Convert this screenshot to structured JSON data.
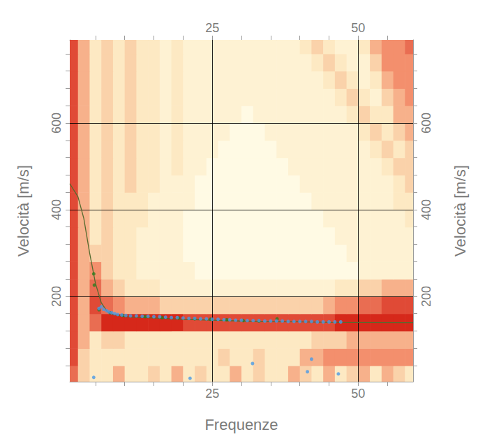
{
  "chart_data": {
    "type": "heatmap",
    "x_label": "Frequenze",
    "y_label": "Velocità [m/s]",
    "xlim": [
      0.6,
      59.4
    ],
    "ylim": [
      3,
      792
    ],
    "xticks": [
      25,
      50
    ],
    "yticks": [
      200,
      400,
      600
    ],
    "grid": true,
    "heatmap": {
      "x": [
        1,
        3,
        5,
        7,
        9,
        11,
        13,
        15,
        17,
        19,
        21,
        23,
        25,
        27,
        29,
        31,
        33,
        35,
        37,
        39,
        41,
        43,
        45,
        47,
        49,
        51,
        53,
        55,
        57,
        59
      ],
      "y": [
        20,
        60,
        100,
        140,
        180,
        220,
        260,
        300,
        340,
        380,
        420,
        460,
        500,
        540,
        580,
        620,
        660,
        700,
        740,
        780
      ],
      "values": [
        [
          7,
          4,
          3,
          3,
          5,
          3,
          3,
          4,
          3,
          5,
          3,
          4,
          3,
          3,
          5,
          3,
          4,
          3,
          3,
          5,
          4,
          3,
          5,
          3,
          4,
          5,
          3,
          5,
          4,
          3
        ],
        [
          8,
          4,
          3,
          3,
          3,
          3,
          3,
          3,
          3,
          3,
          3,
          3,
          3,
          4,
          3,
          3,
          4,
          3,
          3,
          3,
          5,
          5,
          6,
          6,
          6,
          6,
          6,
          6,
          6,
          6
        ],
        [
          8,
          5,
          3,
          4,
          4,
          3,
          3,
          3,
          3,
          3,
          3,
          3,
          3,
          3,
          3,
          3,
          3,
          3,
          3,
          3,
          3,
          4,
          4,
          4,
          5,
          5,
          5,
          5,
          5,
          5
        ],
        [
          8,
          5,
          7,
          9,
          9,
          9,
          9,
          9,
          9,
          9,
          8,
          8,
          8,
          8,
          8,
          8,
          8,
          8,
          8,
          8,
          8,
          8,
          8,
          9,
          9,
          9,
          9,
          9,
          9,
          9
        ],
        [
          8,
          5,
          8,
          7,
          6,
          5,
          5,
          5,
          4,
          4,
          4,
          4,
          4,
          4,
          4,
          4,
          4,
          4,
          4,
          4,
          4,
          4,
          5,
          6,
          6,
          7,
          7,
          8,
          8,
          8
        ],
        [
          8,
          5,
          7,
          5,
          4,
          3,
          3,
          3,
          2,
          2,
          2,
          2,
          2,
          2,
          2,
          2,
          2,
          2,
          2,
          2,
          2,
          2,
          2,
          3,
          3,
          4,
          4,
          5,
          5,
          5
        ],
        [
          8,
          5,
          6,
          4,
          3,
          3,
          2,
          2,
          2,
          2,
          2,
          1,
          1,
          1,
          1,
          1,
          1,
          1,
          1,
          1,
          1,
          1,
          1,
          1,
          1,
          2,
          2,
          2,
          2,
          2
        ],
        [
          8,
          5,
          4,
          4,
          3,
          3,
          2,
          2,
          2,
          2,
          1,
          1,
          1,
          1,
          1,
          1,
          1,
          1,
          1,
          1,
          1,
          1,
          1,
          1,
          2,
          2,
          2,
          2,
          2,
          2
        ],
        [
          8,
          5,
          3,
          4,
          3,
          3,
          2,
          2,
          2,
          2,
          1,
          1,
          1,
          1,
          1,
          1,
          1,
          1,
          1,
          1,
          1,
          1,
          1,
          2,
          2,
          2,
          2,
          2,
          2,
          2
        ],
        [
          8,
          5,
          3,
          4,
          3,
          3,
          3,
          2,
          2,
          2,
          1,
          1,
          1,
          1,
          1,
          1,
          1,
          1,
          1,
          1,
          1,
          1,
          2,
          2,
          2,
          2,
          2,
          2,
          2,
          3
        ],
        [
          8,
          5,
          3,
          4,
          3,
          3,
          3,
          2,
          2,
          2,
          2,
          1,
          1,
          1,
          1,
          1,
          1,
          1,
          1,
          1,
          1,
          2,
          2,
          2,
          2,
          2,
          2,
          2,
          3,
          3
        ],
        [
          8,
          5,
          3,
          4,
          3,
          4,
          3,
          3,
          2,
          2,
          2,
          1,
          1,
          1,
          1,
          1,
          1,
          1,
          1,
          1,
          2,
          2,
          2,
          2,
          2,
          2,
          2,
          2,
          3,
          4
        ],
        [
          8,
          5,
          3,
          4,
          3,
          4,
          3,
          3,
          2,
          3,
          2,
          2,
          1,
          1,
          1,
          1,
          1,
          1,
          1,
          2,
          2,
          2,
          2,
          2,
          2,
          2,
          2,
          3,
          4,
          4
        ],
        [
          8,
          5,
          3,
          4,
          3,
          4,
          3,
          3,
          2,
          3,
          2,
          2,
          2,
          1,
          1,
          1,
          1,
          1,
          2,
          2,
          2,
          2,
          2,
          2,
          2,
          2,
          3,
          4,
          3,
          4
        ],
        [
          8,
          5,
          3,
          4,
          3,
          4,
          3,
          3,
          2,
          3,
          2,
          2,
          2,
          2,
          1,
          1,
          1,
          2,
          2,
          2,
          2,
          2,
          2,
          2,
          2,
          3,
          4,
          3,
          4,
          5
        ],
        [
          8,
          5,
          3,
          4,
          3,
          4,
          3,
          3,
          2,
          3,
          2,
          2,
          2,
          2,
          2,
          1,
          2,
          2,
          2,
          2,
          2,
          2,
          2,
          2,
          3,
          4,
          3,
          3,
          5,
          5
        ],
        [
          8,
          5,
          3,
          4,
          3,
          4,
          3,
          3,
          2,
          3,
          2,
          2,
          2,
          2,
          2,
          2,
          2,
          2,
          2,
          2,
          2,
          2,
          2,
          3,
          4,
          3,
          2,
          4,
          5,
          6
        ],
        [
          8,
          5,
          3,
          4,
          3,
          4,
          3,
          3,
          2,
          3,
          2,
          2,
          2,
          2,
          2,
          2,
          2,
          2,
          2,
          2,
          2,
          2,
          3,
          4,
          3,
          2,
          3,
          5,
          6,
          6
        ],
        [
          8,
          5,
          3,
          4,
          3,
          4,
          3,
          3,
          2,
          3,
          2,
          2,
          2,
          2,
          2,
          2,
          2,
          2,
          2,
          2,
          2,
          3,
          4,
          3,
          2,
          2,
          4,
          6,
          6,
          6
        ],
        [
          8,
          5,
          3,
          4,
          3,
          4,
          3,
          3,
          2,
          3,
          2,
          2,
          2,
          2,
          2,
          2,
          2,
          2,
          2,
          2,
          3,
          4,
          3,
          2,
          2,
          3,
          5,
          6,
          6,
          7
        ]
      ]
    },
    "series": [
      {
        "type": "line",
        "color": "#556b2f",
        "marker": "none",
        "line_style": "solid",
        "x": [
          0.6,
          2,
          3,
          4,
          5,
          6,
          7,
          8,
          10,
          15,
          20,
          25,
          30,
          35,
          40,
          45,
          59.4
        ],
        "values": [
          460,
          430,
          380,
          300,
          230,
          185,
          165,
          158,
          153,
          150,
          147,
          145,
          143,
          142,
          141,
          140,
          139
        ]
      },
      {
        "type": "scatter",
        "color": "#2e7d1f",
        "marker": "circle",
        "x": [
          4.7,
          4.8,
          5.6,
          7.5,
          9.7,
          13.5,
          16.4,
          19.2,
          22,
          24.7,
          27.5,
          30.3,
          33,
          36.1
        ],
        "values": [
          252,
          226,
          169,
          162,
          156,
          153,
          151,
          150,
          148,
          147,
          146,
          144,
          143,
          148
        ]
      },
      {
        "type": "scatter",
        "color": "#4a9ae6",
        "marker": "circle",
        "x": [
          5.6,
          6.0,
          6.4,
          6.9,
          7.3,
          7.8,
          8.3,
          8.8,
          9.5,
          10.2,
          11,
          12,
          13,
          14,
          15,
          16,
          17,
          18,
          19,
          20,
          21,
          22,
          23,
          24,
          25,
          26,
          27,
          28,
          29,
          30,
          31,
          32,
          33,
          34,
          35,
          36,
          37,
          38,
          39,
          40,
          41,
          42,
          43,
          44,
          45,
          46,
          47,
          4.7,
          21.2,
          31.9,
          41.3,
          42,
          46.6
        ],
        "values": [
          172,
          176,
          170,
          167,
          164,
          162,
          160,
          158,
          157,
          156,
          155,
          155,
          154,
          154,
          153,
          153,
          152,
          151,
          151,
          150,
          149,
          149,
          148,
          148,
          147,
          147,
          146,
          146,
          145,
          145,
          144,
          144,
          144,
          143,
          143,
          143,
          143,
          142,
          142,
          142,
          142,
          142,
          141,
          141,
          141,
          141,
          141,
          13,
          11,
          45,
          26,
          55,
          21
        ]
      }
    ]
  }
}
